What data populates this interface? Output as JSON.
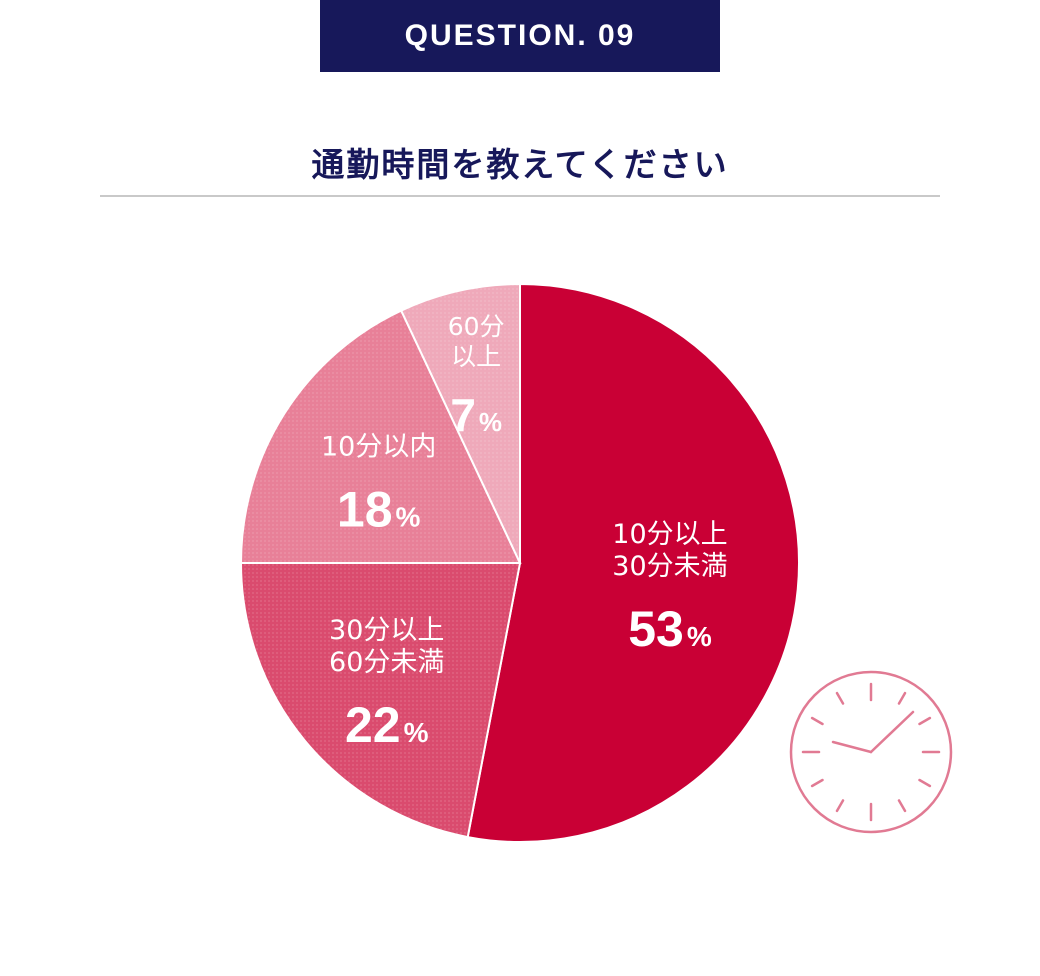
{
  "header": {
    "question_label": "QUESTION. 09",
    "title": "通勤時間を教えてください"
  },
  "chart_data": {
    "type": "pie",
    "title": "通勤時間を教えてください",
    "start": "12 o'clock",
    "direction": "clockwise",
    "slices": [
      {
        "label_lines": [
          "10分以上",
          "30分未満"
        ],
        "value": 53,
        "display": "53",
        "unit": "%",
        "color": "#c90035"
      },
      {
        "label_lines": [
          "30分以上",
          "60分未満"
        ],
        "value": 22,
        "display": "22",
        "unit": "%",
        "color": "#da4b6e"
      },
      {
        "label_lines": [
          "10分以内"
        ],
        "value": 18,
        "display": "18",
        "unit": "%",
        "color": "#e88098"
      },
      {
        "label_lines": [
          "60分",
          "以上"
        ],
        "value": 7,
        "display": "7",
        "unit": "%",
        "color": "#efa9ba"
      }
    ]
  },
  "decorations": {
    "clock_icon_color": "#e17a93"
  }
}
